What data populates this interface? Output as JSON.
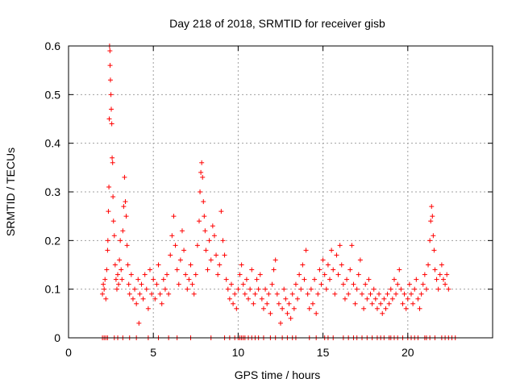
{
  "chart_data": {
    "type": "scatter",
    "title": "Day 218 of 2018, SRMTID for receiver gisb",
    "xlabel": "GPS time / hours",
    "ylabel": "SRMTID / TECUs",
    "xlim": [
      0,
      25
    ],
    "ylim": [
      0,
      0.6
    ],
    "xticks": [
      0,
      5,
      10,
      15,
      20
    ],
    "xtick_labels": [
      "0",
      "5",
      "10",
      "15",
      "20"
    ],
    "yticks": [
      0,
      0.1,
      0.2,
      0.3,
      0.4,
      0.5,
      0.6
    ],
    "ytick_labels": [
      "0",
      "0.1",
      "0.2",
      "0.3",
      "0.4",
      "0.5",
      "0.6"
    ],
    "grid": true,
    "marker": "+",
    "series_color": "#ff0000",
    "series": [
      {
        "name": "SRMTID",
        "points": [
          [
            2.0,
            0.09
          ],
          [
            2.05,
            0.11
          ],
          [
            2.1,
            0.1
          ],
          [
            2.15,
            0.12
          ],
          [
            2.2,
            0.08
          ],
          [
            2.25,
            0.14
          ],
          [
            2.3,
            0.18
          ],
          [
            2.32,
            0.2
          ],
          [
            2.35,
            0.26
          ],
          [
            2.38,
            0.31
          ],
          [
            2.4,
            0.45
          ],
          [
            2.42,
            0.6
          ],
          [
            2.44,
            0.59
          ],
          [
            2.45,
            0.56
          ],
          [
            2.47,
            0.53
          ],
          [
            2.5,
            0.5
          ],
          [
            2.52,
            0.47
          ],
          [
            2.55,
            0.44
          ],
          [
            2.57,
            0.37
          ],
          [
            2.6,
            0.36
          ],
          [
            2.62,
            0.29
          ],
          [
            2.65,
            0.24
          ],
          [
            2.7,
            0.21
          ],
          [
            2.75,
            0.15
          ],
          [
            2.8,
            0.12
          ],
          [
            2.85,
            0.1
          ],
          [
            2.9,
            0.13
          ],
          [
            2.95,
            0.11
          ],
          [
            3.0,
            0.16
          ],
          [
            3.05,
            0.2
          ],
          [
            3.1,
            0.14
          ],
          [
            3.15,
            0.12
          ],
          [
            3.2,
            0.22
          ],
          [
            3.25,
            0.27
          ],
          [
            3.3,
            0.33
          ],
          [
            3.35,
            0.28
          ],
          [
            3.4,
            0.25
          ],
          [
            3.45,
            0.19
          ],
          [
            3.5,
            0.15
          ],
          [
            3.55,
            0.11
          ],
          [
            3.6,
            0.09
          ],
          [
            3.7,
            0.13
          ],
          [
            3.8,
            0.08
          ],
          [
            3.9,
            0.1
          ],
          [
            4.0,
            0.07
          ],
          [
            4.1,
            0.12
          ],
          [
            4.15,
            0.03
          ],
          [
            4.2,
            0.09
          ],
          [
            4.3,
            0.11
          ],
          [
            4.4,
            0.08
          ],
          [
            4.5,
            0.13
          ],
          [
            4.6,
            0.1
          ],
          [
            4.7,
            0.06
          ],
          [
            4.8,
            0.14
          ],
          [
            4.9,
            0.09
          ],
          [
            5.0,
            0.12
          ],
          [
            5.1,
            0.08
          ],
          [
            5.2,
            0.11
          ],
          [
            5.3,
            0.15
          ],
          [
            5.4,
            0.09
          ],
          [
            5.5,
            0.07
          ],
          [
            5.6,
            0.12
          ],
          [
            5.7,
            0.1
          ],
          [
            5.8,
            0.13
          ],
          [
            5.9,
            0.09
          ],
          [
            6.0,
            0.17
          ],
          [
            6.1,
            0.21
          ],
          [
            6.2,
            0.25
          ],
          [
            6.3,
            0.19
          ],
          [
            6.4,
            0.14
          ],
          [
            6.5,
            0.11
          ],
          [
            6.6,
            0.16
          ],
          [
            6.7,
            0.22
          ],
          [
            6.8,
            0.18
          ],
          [
            6.9,
            0.13
          ],
          [
            7.0,
            0.1
          ],
          [
            7.1,
            0.12
          ],
          [
            7.2,
            0.15
          ],
          [
            7.3,
            0.11
          ],
          [
            7.4,
            0.09
          ],
          [
            7.5,
            0.13
          ],
          [
            7.6,
            0.19
          ],
          [
            7.7,
            0.24
          ],
          [
            7.75,
            0.3
          ],
          [
            7.8,
            0.34
          ],
          [
            7.85,
            0.36
          ],
          [
            7.9,
            0.33
          ],
          [
            7.95,
            0.28
          ],
          [
            8.0,
            0.25
          ],
          [
            8.05,
            0.22
          ],
          [
            8.1,
            0.18
          ],
          [
            8.2,
            0.14
          ],
          [
            8.3,
            0.2
          ],
          [
            8.4,
            0.16
          ],
          [
            8.5,
            0.23
          ],
          [
            8.6,
            0.21
          ],
          [
            8.7,
            0.17
          ],
          [
            8.8,
            0.13
          ],
          [
            8.9,
            0.15
          ],
          [
            9.0,
            0.26
          ],
          [
            9.1,
            0.2
          ],
          [
            9.2,
            0.17
          ],
          [
            9.3,
            0.12
          ],
          [
            9.4,
            0.1
          ],
          [
            9.5,
            0.08
          ],
          [
            9.6,
            0.11
          ],
          [
            9.7,
            0.07
          ],
          [
            9.8,
            0.09
          ],
          [
            9.9,
            0.06
          ],
          [
            10.0,
            0.1
          ],
          [
            10.1,
            0.13
          ],
          [
            10.2,
            0.15
          ],
          [
            10.3,
            0.11
          ],
          [
            10.4,
            0.09
          ],
          [
            10.5,
            0.12
          ],
          [
            10.6,
            0.08
          ],
          [
            10.7,
            0.1
          ],
          [
            10.8,
            0.14
          ],
          [
            10.9,
            0.07
          ],
          [
            11.0,
            0.09
          ],
          [
            11.1,
            0.12
          ],
          [
            11.2,
            0.1
          ],
          [
            11.3,
            0.13
          ],
          [
            11.4,
            0.08
          ],
          [
            11.5,
            0.06
          ],
          [
            11.6,
            0.1
          ],
          [
            11.7,
            0.07
          ],
          [
            11.8,
            0.09
          ],
          [
            11.9,
            0.05
          ],
          [
            12.0,
            0.11
          ],
          [
            12.1,
            0.14
          ],
          [
            12.2,
            0.16
          ],
          [
            12.3,
            0.09
          ],
          [
            12.4,
            0.07
          ],
          [
            12.5,
            0.03
          ],
          [
            12.6,
            0.06
          ],
          [
            12.7,
            0.1
          ],
          [
            12.8,
            0.08
          ],
          [
            12.9,
            0.05
          ],
          [
            13.0,
            0.07
          ],
          [
            13.1,
            0.04
          ],
          [
            13.2,
            0.09
          ],
          [
            13.3,
            0.06
          ],
          [
            13.4,
            0.11
          ],
          [
            13.5,
            0.08
          ],
          [
            13.6,
            0.13
          ],
          [
            13.7,
            0.1
          ],
          [
            13.8,
            0.15
          ],
          [
            13.9,
            0.12
          ],
          [
            14.0,
            0.18
          ],
          [
            14.1,
            0.09
          ],
          [
            14.2,
            0.06
          ],
          [
            14.3,
            0.1
          ],
          [
            14.4,
            0.07
          ],
          [
            14.5,
            0.12
          ],
          [
            14.6,
            0.05
          ],
          [
            14.7,
            0.09
          ],
          [
            14.8,
            0.14
          ],
          [
            14.9,
            0.11
          ],
          [
            15.0,
            0.16
          ],
          [
            15.1,
            0.13
          ],
          [
            15.2,
            0.1
          ],
          [
            15.3,
            0.15
          ],
          [
            15.4,
            0.12
          ],
          [
            15.5,
            0.18
          ],
          [
            15.6,
            0.14
          ],
          [
            15.7,
            0.09
          ],
          [
            15.8,
            0.17
          ],
          [
            15.9,
            0.13
          ],
          [
            16.0,
            0.19
          ],
          [
            16.1,
            0.15
          ],
          [
            16.2,
            0.11
          ],
          [
            16.3,
            0.08
          ],
          [
            16.4,
            0.12
          ],
          [
            16.5,
            0.09
          ],
          [
            16.6,
            0.14
          ],
          [
            16.7,
            0.19
          ],
          [
            16.8,
            0.11
          ],
          [
            16.9,
            0.07
          ],
          [
            17.0,
            0.1
          ],
          [
            17.1,
            0.13
          ],
          [
            17.2,
            0.16
          ],
          [
            17.3,
            0.09
          ],
          [
            17.4,
            0.06
          ],
          [
            17.5,
            0.11
          ],
          [
            17.6,
            0.08
          ],
          [
            17.7,
            0.12
          ],
          [
            17.8,
            0.09
          ],
          [
            17.9,
            0.07
          ],
          [
            18.0,
            0.1
          ],
          [
            18.1,
            0.08
          ],
          [
            18.2,
            0.06
          ],
          [
            18.3,
            0.09
          ],
          [
            18.4,
            0.07
          ],
          [
            18.5,
            0.05
          ],
          [
            18.6,
            0.08
          ],
          [
            18.7,
            0.06
          ],
          [
            18.8,
            0.09
          ],
          [
            18.9,
            0.07
          ],
          [
            19.0,
            0.1
          ],
          [
            19.1,
            0.08
          ],
          [
            19.2,
            0.12
          ],
          [
            19.3,
            0.09
          ],
          [
            19.4,
            0.11
          ],
          [
            19.5,
            0.14
          ],
          [
            19.6,
            0.1
          ],
          [
            19.7,
            0.07
          ],
          [
            19.8,
            0.09
          ],
          [
            19.9,
            0.06
          ],
          [
            20.0,
            0.08
          ],
          [
            20.1,
            0.11
          ],
          [
            20.2,
            0.09
          ],
          [
            20.3,
            0.07
          ],
          [
            20.4,
            0.1
          ],
          [
            20.5,
            0.12
          ],
          [
            20.6,
            0.08
          ],
          [
            20.7,
            0.06
          ],
          [
            20.8,
            0.09
          ],
          [
            20.9,
            0.11
          ],
          [
            21.0,
            0.13
          ],
          [
            21.1,
            0.1
          ],
          [
            21.2,
            0.15
          ],
          [
            21.3,
            0.2
          ],
          [
            21.35,
            0.24
          ],
          [
            21.4,
            0.27
          ],
          [
            21.45,
            0.25
          ],
          [
            21.5,
            0.21
          ],
          [
            21.55,
            0.18
          ],
          [
            21.6,
            0.14
          ],
          [
            21.7,
            0.12
          ],
          [
            21.8,
            0.1
          ],
          [
            21.9,
            0.13
          ],
          [
            22.0,
            0.15
          ],
          [
            22.1,
            0.12
          ],
          [
            22.2,
            0.11
          ],
          [
            22.3,
            0.13
          ],
          [
            22.4,
            0.1
          ]
        ]
      }
    ],
    "zero_baseline_x": [
      2.0,
      2.1,
      2.2,
      2.3,
      2.7,
      2.9,
      3.2,
      3.6,
      4.0,
      4.7,
      5.3,
      5.9,
      6.4,
      7.2,
      8.4,
      9.2,
      9.5,
      9.8,
      10.0,
      10.1,
      10.2,
      10.3,
      10.4,
      10.6,
      10.8,
      11.0,
      11.2,
      11.5,
      11.9,
      12.2,
      12.6,
      12.9,
      13.2,
      13.4,
      14.2,
      14.6,
      15.1,
      15.3,
      15.6,
      16.2,
      16.5,
      16.8,
      17.0,
      17.3,
      17.6,
      17.9,
      18.2,
      18.4,
      18.6,
      18.9,
      19.0,
      19.2,
      19.4,
      19.7,
      20.0,
      20.2,
      20.4,
      20.6,
      21.0,
      21.1,
      21.3,
      21.6,
      22.0,
      22.2,
      22.4,
      22.6,
      22.8
    ]
  }
}
